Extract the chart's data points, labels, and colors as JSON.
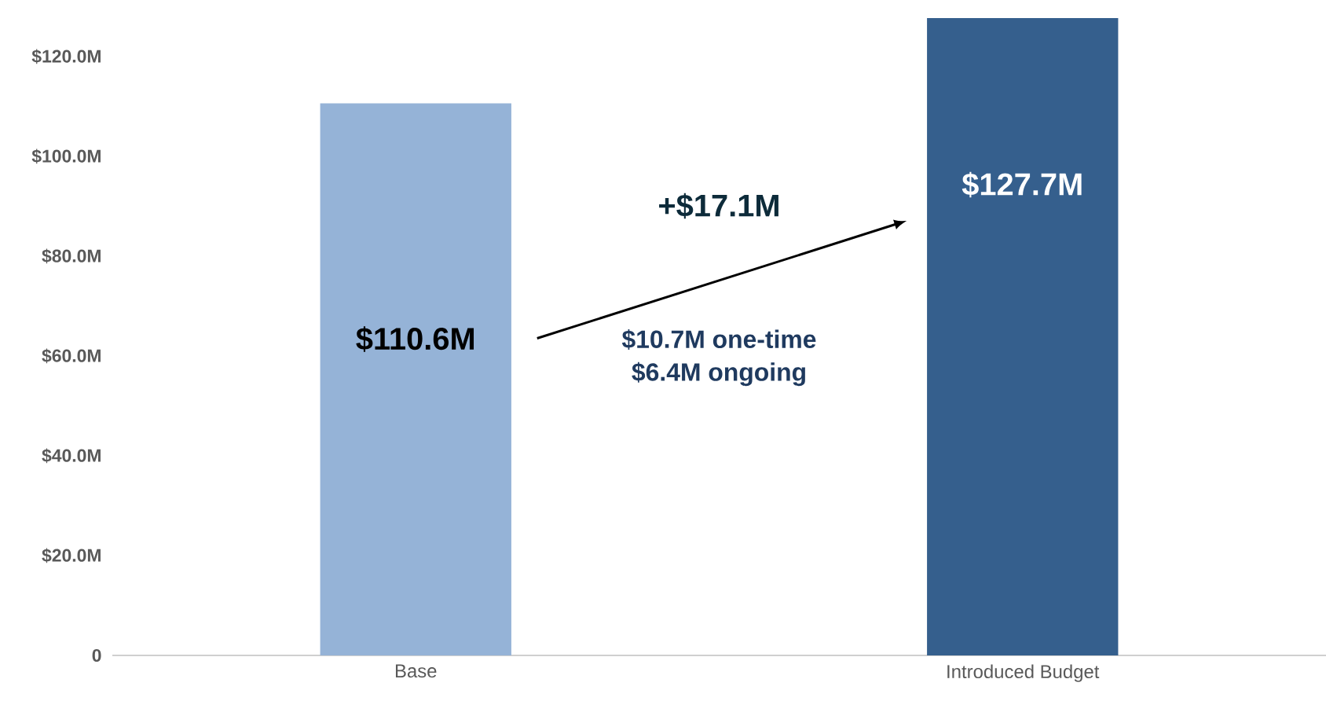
{
  "chart_data": {
    "type": "bar",
    "categories": [
      "Base",
      "Introduced Budget"
    ],
    "values": [
      110.6,
      127.7
    ],
    "colors": [
      "#95b3d7",
      "#355f8d"
    ],
    "value_labels": [
      "$110.6M",
      "$127.7M"
    ],
    "ylim": [
      0,
      128
    ],
    "yticks": [
      {
        "value": 0,
        "label": "0"
      },
      {
        "value": 20,
        "label": "$20.0M"
      },
      {
        "value": 40,
        "label": "$40.0M"
      },
      {
        "value": 60,
        "label": "$60.0M"
      },
      {
        "value": 80,
        "label": "$80.0M"
      },
      {
        "value": 100,
        "label": "$100.0M"
      },
      {
        "value": 120,
        "label": "$120.0M"
      }
    ],
    "annotations": [
      "+$17.1M",
      "$10.7M one-time",
      "$6.4M ongoing"
    ],
    "grid": false,
    "legend": false
  }
}
